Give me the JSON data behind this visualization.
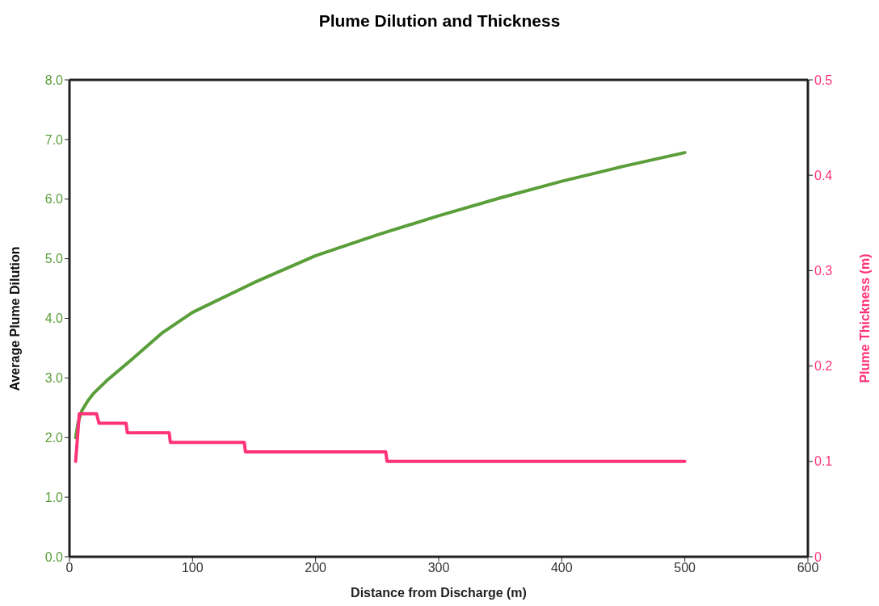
{
  "chart_data": {
    "type": "line",
    "title": "Plume Dilution and Thickness",
    "xlabel": "Distance from Discharge (m)",
    "ylabel": "Average Plume Dilution",
    "y2label": "Plume Thickness (m)",
    "xlim": [
      0,
      600
    ],
    "xticks": [
      0,
      100,
      200,
      300,
      400,
      500,
      600
    ],
    "ylim": [
      0,
      8
    ],
    "yticks": [
      {
        "value": 0,
        "label": "0.0"
      },
      {
        "value": 1,
        "label": "1.0"
      },
      {
        "value": 2,
        "label": "2.0"
      },
      {
        "value": 3,
        "label": "3.0"
      },
      {
        "value": 4,
        "label": "4.0"
      },
      {
        "value": 5,
        "label": "5.0"
      },
      {
        "value": 6,
        "label": "6.0"
      },
      {
        "value": 7,
        "label": "7.0"
      },
      {
        "value": 8,
        "label": "8.0"
      }
    ],
    "y2lim": [
      0,
      0.5
    ],
    "y2ticks": [
      0,
      0.1,
      0.2,
      0.3,
      0.4,
      0.5
    ],
    "marker": "none",
    "line_style": "solid",
    "series": [
      {
        "color": "#5a9e3a",
        "x": [
          5,
          7,
          10,
          15,
          20,
          30,
          50,
          75,
          100,
          150,
          200,
          250,
          300,
          350,
          400,
          450,
          500
        ],
        "values": [
          2.0,
          2.25,
          2.45,
          2.62,
          2.75,
          2.95,
          3.3,
          3.75,
          4.1,
          4.6,
          5.05,
          5.4,
          5.72,
          6.02,
          6.3,
          6.55,
          6.78
        ]
      },
      {
        "color": "#ff3377",
        "axis": "y2",
        "x": [
          5,
          8,
          22,
          24,
          46,
          47,
          81,
          82,
          142,
          143,
          257,
          258,
          500
        ],
        "values": [
          0.1,
          0.15,
          0.15,
          0.14,
          0.14,
          0.13,
          0.13,
          0.12,
          0.12,
          0.11,
          0.11,
          0.1,
          0.1
        ]
      }
    ]
  }
}
